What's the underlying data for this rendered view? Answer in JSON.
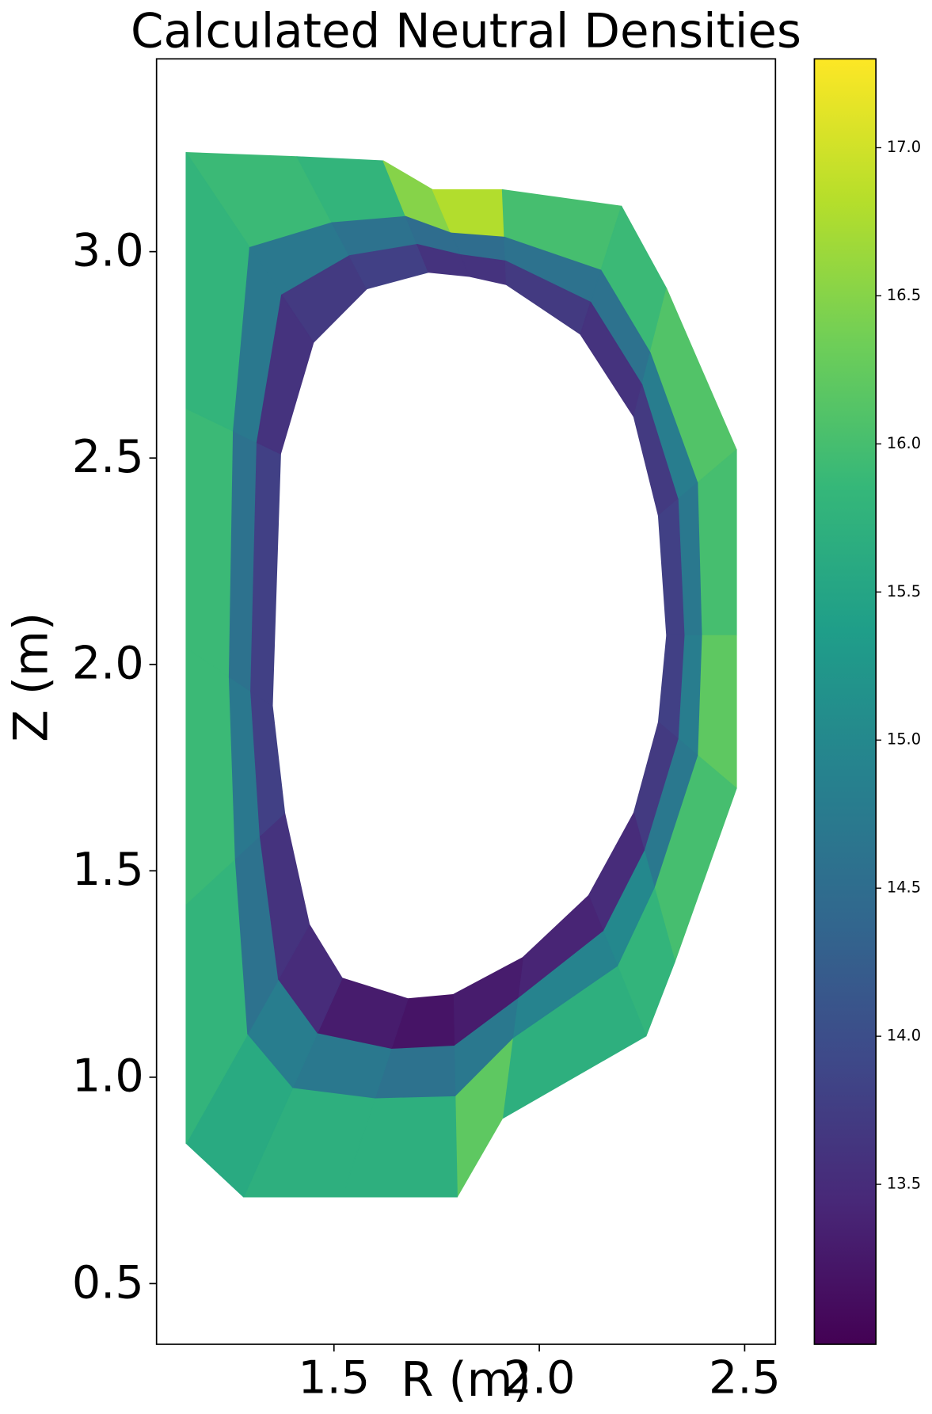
{
  "chart_data": {
    "type": "tripcolor",
    "title": "Calculated Neutral Densities",
    "xlabel": "R (m)",
    "ylabel": "Z (m)",
    "xlim": [
      1.068,
      2.575
    ],
    "ylim": [
      0.353,
      3.467
    ],
    "xticks": [
      1.5,
      {
        "value": 2,
        "label": "2.0"
      },
      2.5
    ],
    "yticks": [
      0.5,
      {
        "value": 1,
        "label": "1.0"
      },
      1.5,
      {
        "value": 2,
        "label": "2.0"
      },
      2.5,
      {
        "value": 3,
        "label": "3.0"
      }
    ],
    "colormap": [
      "#440154",
      "#482878",
      "#3e4989",
      "#31688e",
      "#26828e",
      "#1f9e89",
      "#35b779",
      "#6ece58",
      "#b5de2b",
      "#fde725"
    ],
    "clim": [
      12.96,
      17.3
    ],
    "cticks": [
      13.5,
      {
        "value": 14,
        "label": "14.0"
      },
      14.5,
      {
        "value": 15,
        "label": "15.0"
      },
      15.5,
      {
        "value": 16,
        "label": "16.0"
      },
      16.5,
      {
        "value": 17,
        "label": "17.0"
      }
    ],
    "outer": [
      [
        1.14,
        3.24
      ],
      [
        1.41,
        3.23
      ],
      [
        1.62,
        3.22
      ],
      [
        1.74,
        3.15
      ],
      [
        1.91,
        3.15
      ],
      [
        2.2,
        3.11
      ],
      [
        2.31,
        2.91
      ],
      [
        2.48,
        2.52
      ],
      [
        2.48,
        2.07
      ],
      [
        2.48,
        1.7
      ],
      [
        2.33,
        1.28
      ],
      [
        2.26,
        1.1
      ],
      [
        1.91,
        0.9
      ],
      [
        1.8,
        0.71
      ],
      [
        1.52,
        0.71
      ],
      [
        1.28,
        0.71
      ],
      [
        1.14,
        0.84
      ],
      [
        1.14,
        1.42
      ],
      [
        1.14,
        2.04
      ],
      [
        1.14,
        2.62
      ]
    ],
    "inner": [
      [
        1.45,
        2.78
      ],
      [
        1.58,
        2.91
      ],
      [
        1.73,
        2.95
      ],
      [
        1.83,
        2.94
      ],
      [
        1.92,
        2.92
      ],
      [
        2.1,
        2.8
      ],
      [
        2.23,
        2.6
      ],
      [
        2.29,
        2.36
      ],
      [
        2.31,
        2.07
      ],
      [
        2.29,
        1.86
      ],
      [
        2.23,
        1.64
      ],
      [
        2.12,
        1.44
      ],
      [
        1.96,
        1.29
      ],
      [
        1.79,
        1.2
      ],
      [
        1.68,
        1.19
      ],
      [
        1.52,
        1.24
      ],
      [
        1.44,
        1.37
      ],
      [
        1.38,
        1.64
      ],
      [
        1.35,
        1.9
      ],
      [
        1.37,
        2.51
      ]
    ],
    "layers": [
      {
        "values": [
          15.9,
          15.8,
          16.5,
          16.8,
          16.0,
          15.9,
          16.1,
          16.0,
          16.2,
          16.0,
          15.8,
          15.7,
          16.2,
          15.7,
          15.7,
          15.6,
          15.8,
          15.9,
          15.9,
          15.8
        ]
      },
      {
        "values": [
          14.7,
          14.6,
          14.5,
          14.5,
          14.6,
          14.6,
          14.8,
          14.7,
          14.8,
          14.7,
          15.0,
          14.9,
          14.7,
          14.6,
          14.7,
          14.8,
          14.6,
          14.7,
          14.6,
          14.7
        ]
      },
      {
        "values": [
          13.7,
          13.8,
          13.6,
          13.6,
          13.7,
          13.6,
          13.7,
          13.8,
          13.8,
          13.7,
          13.5,
          13.4,
          13.3,
          13.2,
          13.3,
          13.5,
          13.6,
          13.8,
          13.8,
          13.6
        ]
      }
    ]
  }
}
